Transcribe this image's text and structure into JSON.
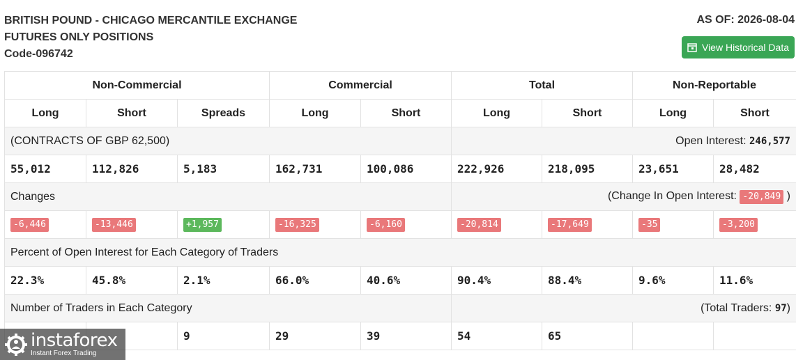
{
  "header": {
    "title_line1": "BRITISH POUND - CHICAGO MERCANTILE EXCHANGE",
    "title_line2": "FUTURES ONLY POSITIONS",
    "code": "Code-096742",
    "as_of": "AS OF: 2026-08-04",
    "historical_button": "View Historical Data",
    "historical_icon": "calendar-icon",
    "button_color": "#3aa655"
  },
  "groups": [
    "Non-Commercial",
    "Commercial",
    "Total",
    "Non-Reportable"
  ],
  "columns": [
    "Long",
    "Short",
    "Spreads",
    "Long",
    "Short",
    "Long",
    "Short",
    "Long",
    "Short"
  ],
  "contracts": {
    "label": "(CONTRACTS OF GBP 62,500)",
    "open_interest_label": "Open Interest:",
    "open_interest": "246,577",
    "values": [
      "55,012",
      "112,826",
      "5,183",
      "162,731",
      "100,086",
      "222,926",
      "218,095",
      "23,651",
      "28,482"
    ]
  },
  "changes": {
    "label": "Changes",
    "oi_label": "(Change In Open Interest:",
    "oi_value": "-20,849",
    "oi_close": ")",
    "values": [
      "-6,446",
      "-13,446",
      "+1,957",
      "-16,325",
      "-6,160",
      "-20,814",
      "-17,649",
      "-35",
      "-3,200"
    ],
    "negative_color": "#e9787a",
    "positive_color": "#5cb85c"
  },
  "percent": {
    "label": "Percent of Open Interest for Each Category of Traders",
    "values": [
      "22.3%",
      "45.8%",
      "2.1%",
      "66.0%",
      "40.6%",
      "90.4%",
      "88.4%",
      "9.6%",
      "11.6%"
    ]
  },
  "traders": {
    "label": "Number of Traders in Each Category",
    "total_label": "(Total Traders:",
    "total_value": "97",
    "total_close": ")",
    "values": [
      "",
      "",
      "9",
      "29",
      "39",
      "54",
      "65",
      "",
      ""
    ]
  },
  "watermark": {
    "name": "instaforex",
    "tagline": "Instant Forex Trading"
  }
}
